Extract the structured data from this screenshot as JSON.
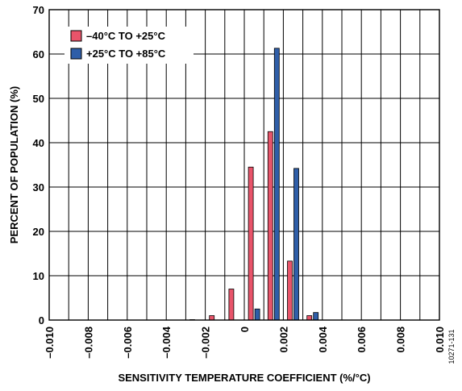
{
  "chart_data": {
    "type": "bar",
    "title": "",
    "xlabel": "SENSITIVITY TEMPERATURE COEFFICIENT (%/°C)",
    "ylabel": "PERCENT OF POPULATION (%)",
    "xlim": [
      -0.01,
      0.01
    ],
    "ylim": [
      0,
      70
    ],
    "x_ticks": [
      "–0.010",
      "–0.008",
      "–0.006",
      "–0.004",
      "–0.002",
      "0",
      "0.002",
      "0.004",
      "0.006",
      "0.008",
      "0.010"
    ],
    "y_ticks": [
      "0",
      "10",
      "20",
      "30",
      "40",
      "50",
      "60",
      "70"
    ],
    "x_tick_values": [
      -0.01,
      -0.008,
      -0.006,
      -0.004,
      -0.002,
      0,
      0.002,
      0.004,
      0.006,
      0.008,
      0.01
    ],
    "y_tick_values": [
      0,
      10,
      20,
      30,
      40,
      50,
      60,
      70
    ],
    "x_minor_step": 0.001,
    "grid": true,
    "legend_position": "top-left",
    "bin_centers": [
      -0.0025,
      -0.0015,
      -0.0005,
      0.0005,
      0.0015,
      0.0025,
      0.0035
    ],
    "series": [
      {
        "name": "–40°C TO +25°C",
        "color": "#e8546a",
        "values": [
          0.1,
          1.0,
          7.0,
          34.5,
          42.5,
          13.3,
          1.0
        ]
      },
      {
        "name": "+25°C TO +85°C",
        "color": "#2f5ea8",
        "values": [
          0.0,
          0.0,
          0.0,
          2.5,
          61.3,
          34.2,
          1.7
        ]
      }
    ],
    "figure_id": "10271-131"
  }
}
